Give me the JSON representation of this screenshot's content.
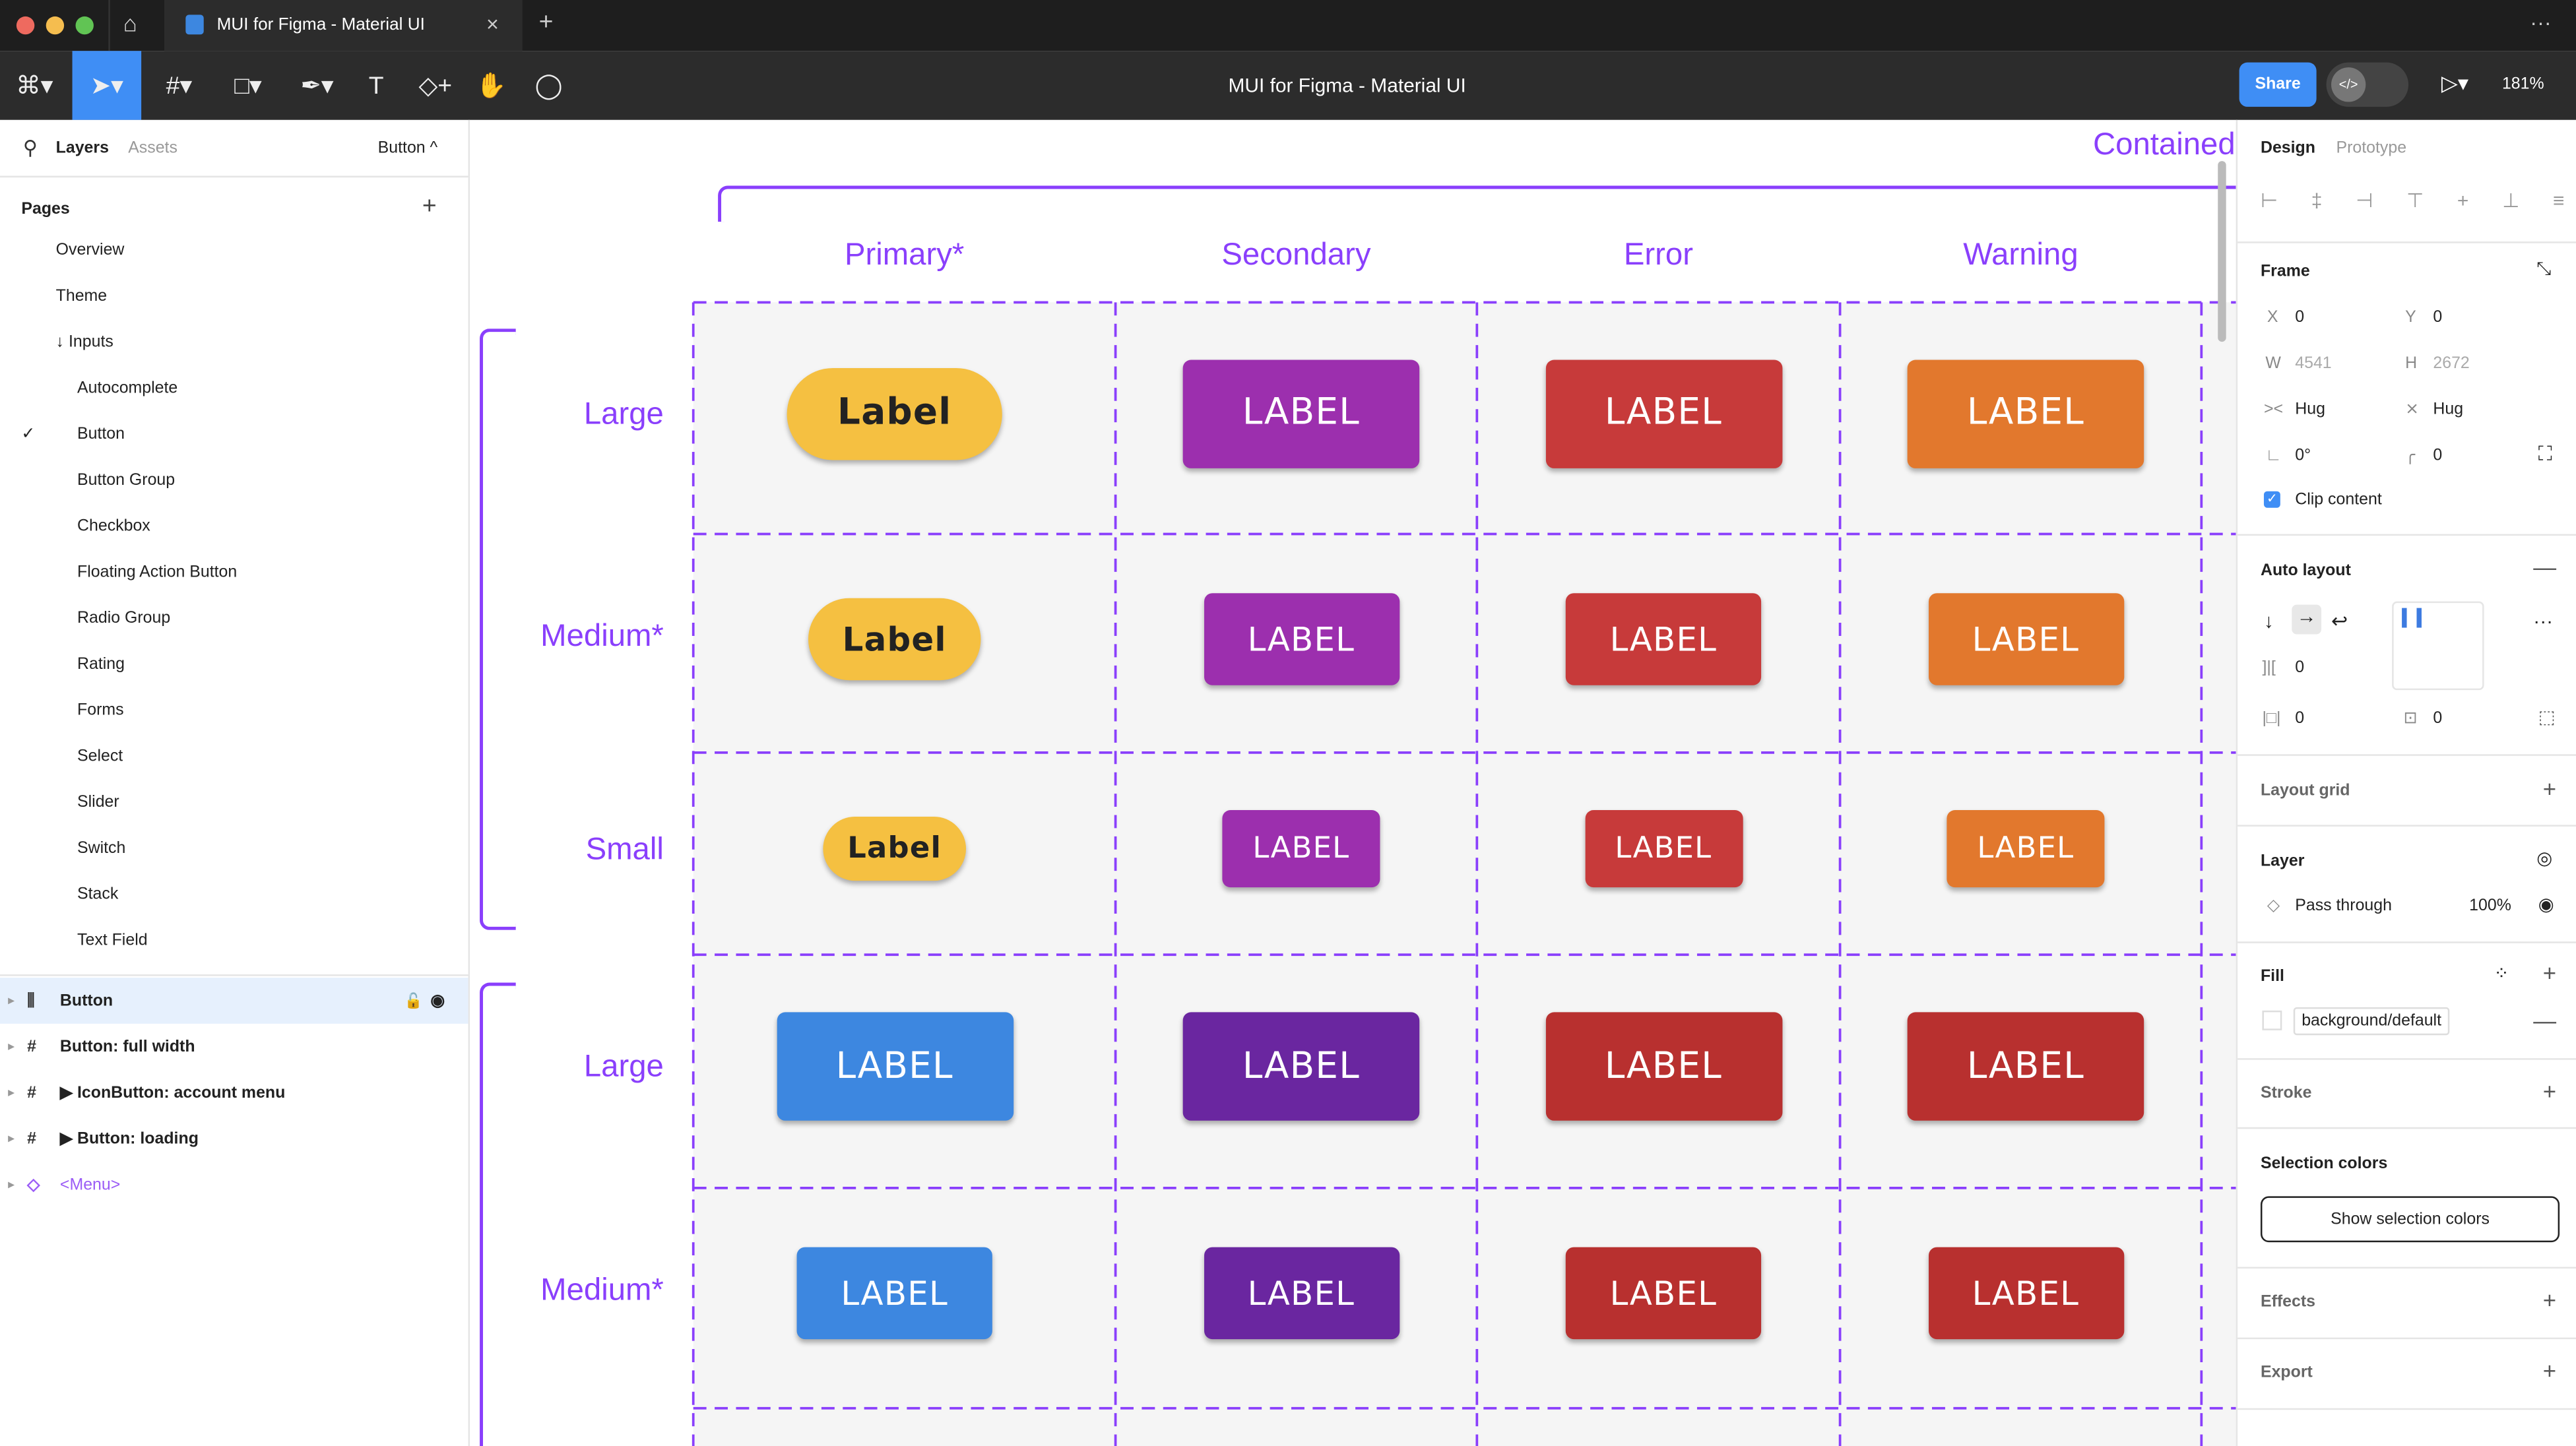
{
  "window": {
    "tab_title": "MUI for Figma - Material UI",
    "close": "×",
    "new_tab": "+",
    "more": "···"
  },
  "toolbar": {
    "title": "MUI for Figma - Material UI",
    "share": "Share",
    "zoom": "181%",
    "dev_mode": "</>"
  },
  "left": {
    "tab_layers": "Layers",
    "tab_assets": "Assets",
    "page_selector": "Button ^",
    "pages_title": "Pages",
    "add": "+",
    "pages": [
      {
        "label": "Overview",
        "indent": 0
      },
      {
        "label": "Theme",
        "indent": 0
      },
      {
        "label": "↓ Inputs",
        "indent": 0
      },
      {
        "label": "Autocomplete",
        "indent": 1
      },
      {
        "label": "Button",
        "indent": 1,
        "selected": true
      },
      {
        "label": "Button Group",
        "indent": 1
      },
      {
        "label": "Checkbox",
        "indent": 1
      },
      {
        "label": "Floating Action Button",
        "indent": 1
      },
      {
        "label": "Radio Group",
        "indent": 1
      },
      {
        "label": "Rating",
        "indent": 1
      },
      {
        "label": "Forms",
        "indent": 1
      },
      {
        "label": "Select",
        "indent": 1
      },
      {
        "label": "Slider",
        "indent": 1
      },
      {
        "label": "Switch",
        "indent": 1
      },
      {
        "label": "Stack",
        "indent": 1
      },
      {
        "label": "Text Field",
        "indent": 1
      }
    ],
    "layers": [
      {
        "label": "Button",
        "icon": "auto-layout",
        "selected": true
      },
      {
        "label": "Button: full width",
        "icon": "frame"
      },
      {
        "label": "▶ IconButton: account menu",
        "icon": "frame"
      },
      {
        "label": "▶ Button: loading",
        "icon": "frame"
      },
      {
        "label": "<Menu>",
        "icon": "component"
      }
    ]
  },
  "canvas": {
    "title": "Contained",
    "columns": [
      "Primary*",
      "Secondary",
      "Error",
      "Warning"
    ],
    "rows": [
      "Large",
      "Medium*",
      "Small",
      "Large",
      "Medium*"
    ],
    "colors": {
      "purple": "#8a3ffc",
      "yellow": "#f5c041",
      "secondary": "#9c2fae",
      "error": "#c73a3a",
      "warning": "#e2782d",
      "blue": "#3d87e0",
      "secondary_dark": "#6a26a0",
      "error_dark": "#b8302f"
    },
    "buttons": [
      [
        {
          "label": "Label",
          "color": "#f5c041",
          "text": "#222",
          "pill": true
        },
        {
          "label": "LABEL",
          "color": "#9c2fae"
        },
        {
          "label": "LABEL",
          "color": "#c73a3a"
        },
        {
          "label": "LABEL",
          "color": "#e2782d"
        }
      ],
      [
        {
          "label": "Label",
          "color": "#f5c041",
          "text": "#222",
          "pill": true
        },
        {
          "label": "LABEL",
          "color": "#9c2fae"
        },
        {
          "label": "LABEL",
          "color": "#c73a3a"
        },
        {
          "label": "LABEL",
          "color": "#e2782d"
        }
      ],
      [
        {
          "label": "Label",
          "color": "#f5c041",
          "text": "#222",
          "pill": true
        },
        {
          "label": "LABEL",
          "color": "#9c2fae"
        },
        {
          "label": "LABEL",
          "color": "#c73a3a"
        },
        {
          "label": "LABEL",
          "color": "#e2782d"
        }
      ],
      [
        {
          "label": "LABEL",
          "color": "#3d87e0"
        },
        {
          "label": "LABEL",
          "color": "#6a26a0"
        },
        {
          "label": "LABEL",
          "color": "#b8302f"
        },
        {
          "label": "LABEL",
          "color": "#b8302f"
        }
      ],
      [
        {
          "label": "LABEL",
          "color": "#3d87e0"
        },
        {
          "label": "LABEL",
          "color": "#6a26a0"
        },
        {
          "label": "LABEL",
          "color": "#b8302f"
        },
        {
          "label": "LABEL",
          "color": "#b8302f"
        }
      ]
    ]
  },
  "right": {
    "tab_design": "Design",
    "tab_prototype": "Prototype",
    "frame": "Frame",
    "x_label": "X",
    "x": "0",
    "y_label": "Y",
    "y": "0",
    "w_label": "W",
    "w": "4541",
    "h_label": "H",
    "h": "2672",
    "hug_w": "Hug",
    "hug_h": "Hug",
    "rotation": "0°",
    "radius": "0",
    "clip": "Clip content",
    "auto_layout": "Auto layout",
    "gap": "0",
    "pad_h": "0",
    "pad_v": "0",
    "layout_grid": "Layout grid",
    "layer": "Layer",
    "blend": "Pass through",
    "opacity": "100%",
    "fill": "Fill",
    "fill_style": "background/default",
    "stroke": "Stroke",
    "selection_colors": "Selection colors",
    "show_selection": "Show selection colors",
    "effects": "Effects",
    "export": "Export"
  }
}
